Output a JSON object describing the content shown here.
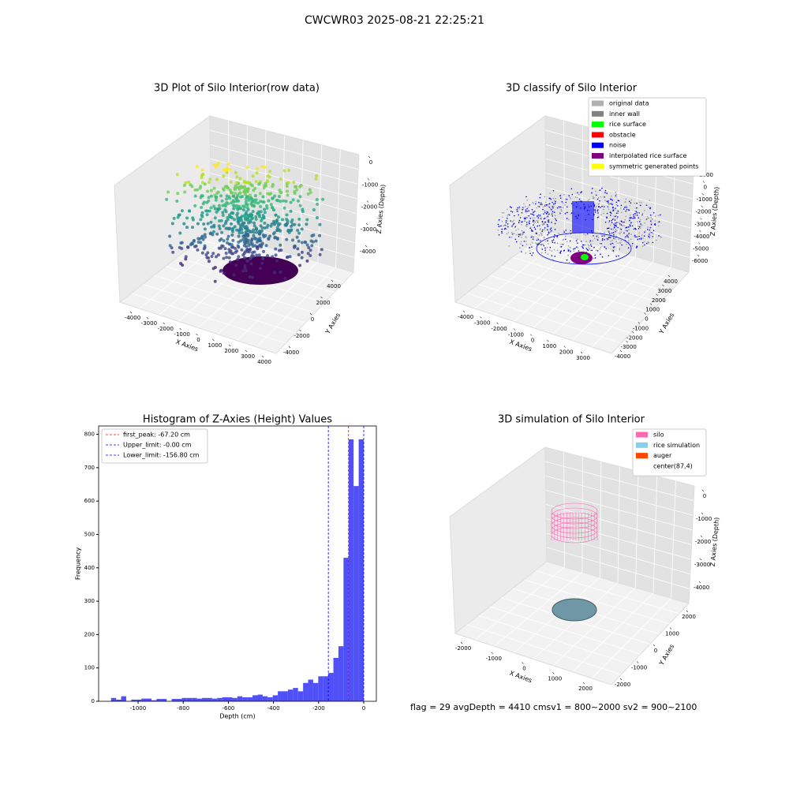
{
  "title": "CWCWR03 2025-08-21 22:25:21",
  "footer": "flag = 29  avgDepth = 4410 cmsv1 = 800~2000  sv2 = 900~2100",
  "chart_data": [
    {
      "type": "scatter3d",
      "title": "3D Plot of Silo Interior(row data)",
      "xlabel": "X Axies",
      "ylabel": "Y Axies",
      "zlabel": "Z Axies (Depth)",
      "xticks": [
        -4000,
        -3000,
        -2000,
        -1000,
        0,
        1000,
        2000,
        3000,
        4000
      ],
      "yticks": [
        -4000,
        -2000,
        0,
        2000,
        4000
      ],
      "zticks": [
        0,
        -1000,
        -2000,
        -3000,
        -4000
      ]
    },
    {
      "type": "scatter3d",
      "title": "3D classify of Silo Interior",
      "xlabel": "X Axies",
      "ylabel": "Y Axies",
      "zlabel": "Z Axies (Depth)",
      "xticks": [
        -4000,
        -3000,
        -2000,
        -1000,
        0,
        1000,
        2000,
        3000
      ],
      "yticks": [
        -4000,
        -3000,
        -2000,
        -1000,
        0,
        1000,
        2000,
        3000,
        4000
      ],
      "zticks": [
        1000,
        0,
        -1000,
        -2000,
        -3000,
        -4000,
        -5000,
        -6000
      ],
      "legend": [
        {
          "name": "original data",
          "color": "#b0b0b0"
        },
        {
          "name": "inner wall",
          "color": "#808080"
        },
        {
          "name": "rice surface",
          "color": "#00ff00"
        },
        {
          "name": "obstacle",
          "color": "#ff0000"
        },
        {
          "name": "noise",
          "color": "#0000ff"
        },
        {
          "name": "interpolated rice surface",
          "color": "#800080"
        },
        {
          "name": "symmetric generated points",
          "color": "#ffff00"
        }
      ]
    },
    {
      "type": "histogram",
      "title": "Histogram of Z-Axies (Height) Values",
      "xlabel": "Depth (cm)",
      "ylabel": "Frequency",
      "color": "#5050f8",
      "bins": [
        -1120,
        -1097.6,
        -1075.2,
        -1052.8,
        -1030.4,
        -1008,
        -985.6,
        -963.2,
        -940.8,
        -918.4,
        -896,
        -873.6,
        -851.2,
        -828.8,
        -806.4,
        -784,
        -761.6,
        -739.2,
        -716.8,
        -694.4,
        -672,
        -649.6,
        -627.2,
        -604.8,
        -582.4,
        -560,
        -537.6,
        -515.2,
        -492.8,
        -470.4,
        -448,
        -425.6,
        -403.2,
        -380.8,
        -358.4,
        -336,
        -313.6,
        -291.2,
        -268.8,
        -246.4,
        -224,
        -201.6,
        -179.2,
        -156.8,
        -134.4,
        -112,
        -89.6,
        -67.2,
        -44.8,
        -22.4,
        0
      ],
      "values": [
        10,
        5,
        15,
        0,
        5,
        5,
        8,
        8,
        3,
        7,
        7,
        0,
        7,
        7,
        10,
        10,
        10,
        8,
        10,
        10,
        8,
        10,
        12,
        12,
        10,
        15,
        12,
        12,
        18,
        20,
        15,
        12,
        18,
        30,
        30,
        35,
        40,
        30,
        55,
        65,
        55,
        75,
        75,
        85,
        130,
        165,
        430,
        785,
        645,
        785
      ],
      "xlim": [
        -1175,
        56
      ],
      "ylim": [
        0,
        825
      ],
      "xticks": [
        -1000,
        -800,
        -600,
        -400,
        -200,
        0
      ],
      "yticks": [
        0,
        100,
        200,
        300,
        400,
        500,
        600,
        700,
        800
      ],
      "vlines": [
        {
          "label": "first_peak: -67.20 cm",
          "value": -67.2,
          "color": "#ff0000"
        },
        {
          "label": "Upper_limit: -0.00 cm",
          "value": 0,
          "color": "#0000ff"
        },
        {
          "label": "Lower_limit: -156.80 cm",
          "value": -156.8,
          "color": "#0000ff"
        }
      ]
    },
    {
      "type": "surface3d",
      "title": "3D simulation of Silo Interior",
      "xlabel": "X Axies",
      "ylabel": "Y Axies",
      "zlabel": "Z Axies (Depth)",
      "xticks": [
        -2000,
        -1000,
        0,
        1000,
        2000
      ],
      "yticks": [
        -2000,
        -1000,
        0,
        1000,
        2000
      ],
      "zticks": [
        0,
        -1000,
        -2000,
        -3000,
        -4000
      ],
      "legend": [
        {
          "name": "silo",
          "color": "#ff69b4"
        },
        {
          "name": "rice simulation",
          "color": "#87ceeb"
        },
        {
          "name": "auger",
          "color": "#ff4500"
        },
        {
          "name": "center(87,4)"
        }
      ]
    }
  ]
}
